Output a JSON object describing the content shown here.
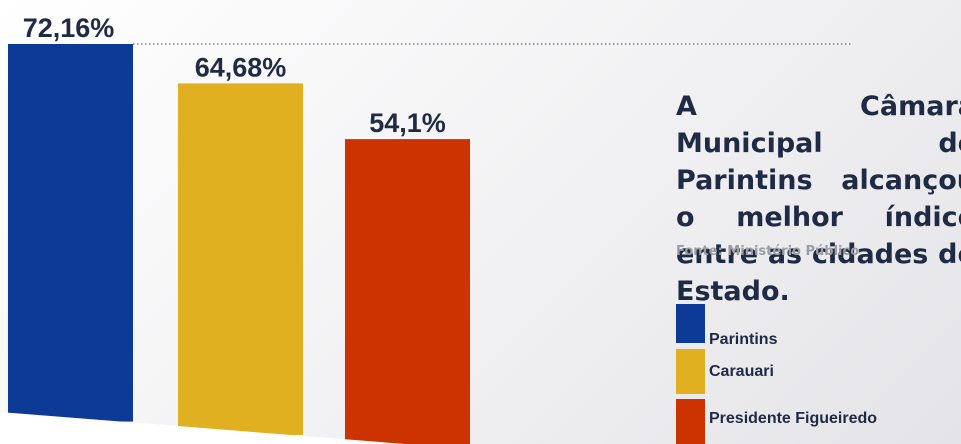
{
  "chart_data": {
    "type": "bar",
    "categories": [
      "Parintins",
      "Carauari",
      "Presidente Figueiredo"
    ],
    "values": [
      72.16,
      64.68,
      54.1
    ],
    "value_labels": [
      "72,16%",
      "64,68%",
      "54,1%"
    ],
    "colors": [
      "#0d3a96",
      "#e0b020",
      "#cc3300"
    ],
    "ylim": [
      0,
      72.16
    ],
    "grid": false,
    "reference_line": "dotted line at the top value",
    "legend_position": "bottom-right"
  },
  "headline": "A Câmara Municipal de Parintins alcançou o melhor índice entre as cidades do Estado.",
  "source": "Fonte: Ministério Público",
  "legend": {
    "items": [
      {
        "label": "Parintins",
        "color": "#0d3a96"
      },
      {
        "label": "Carauari",
        "color": "#e0b020"
      },
      {
        "label": "Presidente Figueiredo",
        "color": "#cc3300"
      }
    ]
  }
}
